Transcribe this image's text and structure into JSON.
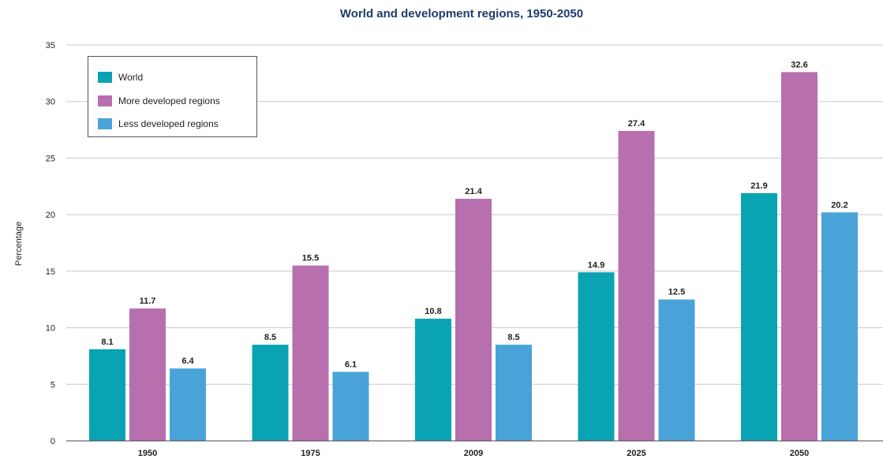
{
  "chart_data": {
    "type": "bar",
    "title": "World and development regions, 1950-2050",
    "xlabel": "",
    "ylabel": "Percentage",
    "ylim": [
      0,
      35
    ],
    "yticks": [
      0,
      5,
      10,
      15,
      20,
      25,
      30,
      35
    ],
    "categories": [
      "1950",
      "1975",
      "2009",
      "2025",
      "2050"
    ],
    "grid": true,
    "legend_position": "top-left",
    "series": [
      {
        "name": "World",
        "color": "#0aa3b3",
        "values": [
          8.1,
          8.5,
          10.8,
          14.9,
          21.9
        ]
      },
      {
        "name": "More developed regions",
        "color": "#b76fae",
        "values": [
          11.7,
          15.5,
          21.4,
          27.4,
          32.6
        ]
      },
      {
        "name": "Less developed regions",
        "color": "#4aa3d8",
        "values": [
          6.4,
          6.1,
          8.5,
          12.5,
          20.2
        ]
      }
    ]
  }
}
